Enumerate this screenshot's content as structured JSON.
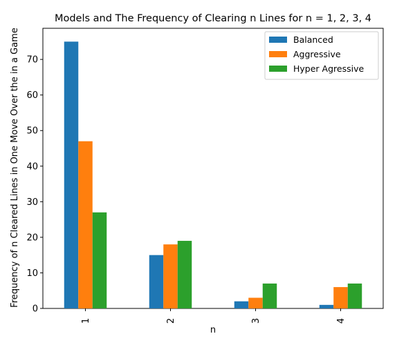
{
  "chart_data": {
    "type": "bar",
    "title": "Models and The Frequency of Clearing n Lines for n = 1, 2, 3, 4",
    "xlabel": "n",
    "ylabel": "Frequency of n Cleared Lines in One Move Over the in a Game",
    "categories": [
      "1",
      "2",
      "3",
      "4"
    ],
    "ylim": [
      0,
      78.75
    ],
    "yticks": [
      0,
      10,
      20,
      30,
      40,
      50,
      60,
      70
    ],
    "grid": false,
    "legend_position": "top-right",
    "series": [
      {
        "name": "Balanced",
        "color": "#1f77b4",
        "values": [
          75,
          15,
          2,
          1
        ]
      },
      {
        "name": "Aggressive",
        "color": "#ff7f0e",
        "values": [
          47,
          18,
          3,
          6
        ]
      },
      {
        "name": "Hyper Agressive",
        "color": "#2ca02c",
        "values": [
          27,
          19,
          7,
          7
        ]
      }
    ]
  }
}
